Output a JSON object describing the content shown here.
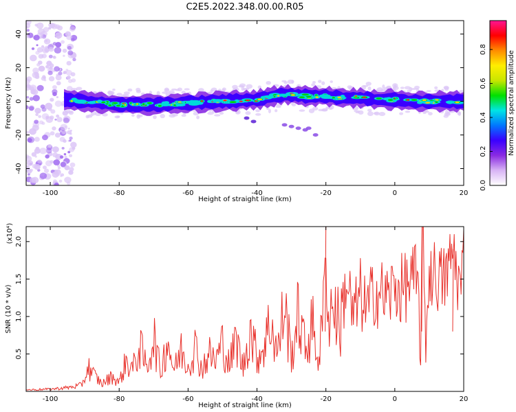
{
  "title": "C2E5.2022.348.00.00.R05",
  "chart_data": [
    {
      "type": "heatmap",
      "xlabel": "Height of straight line (km)",
      "ylabel": "Frequency (Hz)",
      "xlim": [
        -107,
        20
      ],
      "ylim": [
        -50,
        48
      ],
      "xticks": [
        -100,
        -80,
        -60,
        -40,
        -20,
        0,
        20
      ],
      "yticks": [
        -40,
        -20,
        0,
        20,
        40
      ],
      "colorbar": {
        "label": "Normalized spectral amplitude",
        "range": [
          0.0,
          0.97
        ],
        "ticks": [
          "0.0",
          "0.2",
          "0.4",
          "0.6",
          "0.8"
        ],
        "colors": [
          "#ffffff",
          "#d8b4f5",
          "#8a2be2",
          "#3a00ff",
          "#0077ff",
          "#00e5e5",
          "#00e000",
          "#c8e600",
          "#ffee00",
          "#ff8c00",
          "#ff0000",
          "#ff1493"
        ]
      },
      "main_band": {
        "x": [
          -96,
          -90,
          -80,
          -70,
          -60,
          -50,
          -40,
          -35,
          -32,
          -25,
          -20,
          -15,
          -10,
          -5,
          0,
          5,
          10,
          15,
          20
        ],
        "freq": [
          1,
          0,
          -2,
          -2,
          -1,
          0,
          1,
          3,
          4,
          3,
          3,
          2,
          2,
          1,
          1,
          0,
          0,
          0,
          0
        ]
      },
      "side_streak": {
        "x": [
          -43,
          -41,
          -32,
          -30,
          -28,
          -26,
          -25,
          -23
        ],
        "freq": [
          -10,
          -12,
          -14,
          -15,
          -16,
          -17,
          -16,
          -20
        ]
      }
    },
    {
      "type": "line",
      "xlabel": "Height of straight line (km)",
      "ylabel": "SNR (10 * v/v)",
      "y_multiplier": "(x10⁴)",
      "xlim": [
        -107,
        20
      ],
      "ylim": [
        0,
        2.2
      ],
      "xticks": [
        -100,
        -80,
        -60,
        -40,
        -20,
        0,
        20
      ],
      "yticks": [
        0.5,
        1.0,
        1.5,
        2.0
      ],
      "series": [
        {
          "color": "#e8302a",
          "x": [
            -107,
            -100,
            -95,
            -91,
            -90,
            -89,
            -88,
            -85,
            -82,
            -80,
            -78,
            -76,
            -74,
            -72,
            -70,
            -68,
            -66,
            -64,
            -62,
            -60,
            -58,
            -56,
            -54,
            -52,
            -50,
            -48,
            -46,
            -44,
            -42,
            -40,
            -38,
            -36,
            -34,
            -32,
            -30,
            -28,
            -26,
            -24,
            -22,
            -20.5,
            -20,
            -19.5,
            -18,
            -16,
            -14,
            -12,
            -10,
            -8,
            -6,
            -4,
            -2,
            0,
            2,
            4,
            6,
            7,
            7.5,
            8,
            9,
            10,
            12,
            14,
            16,
            17,
            18,
            19,
            20
          ],
          "y": [
            0.02,
            0.03,
            0.05,
            0.08,
            0.18,
            0.33,
            0.25,
            0.1,
            0.2,
            0.12,
            0.4,
            0.3,
            0.6,
            0.3,
            0.75,
            0.25,
            0.7,
            0.28,
            0.55,
            0.35,
            0.6,
            0.3,
            0.5,
            0.4,
            0.65,
            0.35,
            0.7,
            0.3,
            0.85,
            0.45,
            0.6,
            0.95,
            0.5,
            1.15,
            0.45,
            1.05,
            0.55,
            0.9,
            0.4,
            1.25,
            2.2,
            0.9,
            1.2,
            0.85,
            1.5,
            0.95,
            1.3,
            1.05,
            1.35,
            1.3,
            1.25,
            1.4,
            1.35,
            1.45,
            1.5,
            1.2,
            0.5,
            2.2,
            0.7,
            1.6,
            1.55,
            1.45,
            1.7,
            1.9,
            1.6,
            1.35,
            1.8
          ]
        }
      ]
    }
  ]
}
